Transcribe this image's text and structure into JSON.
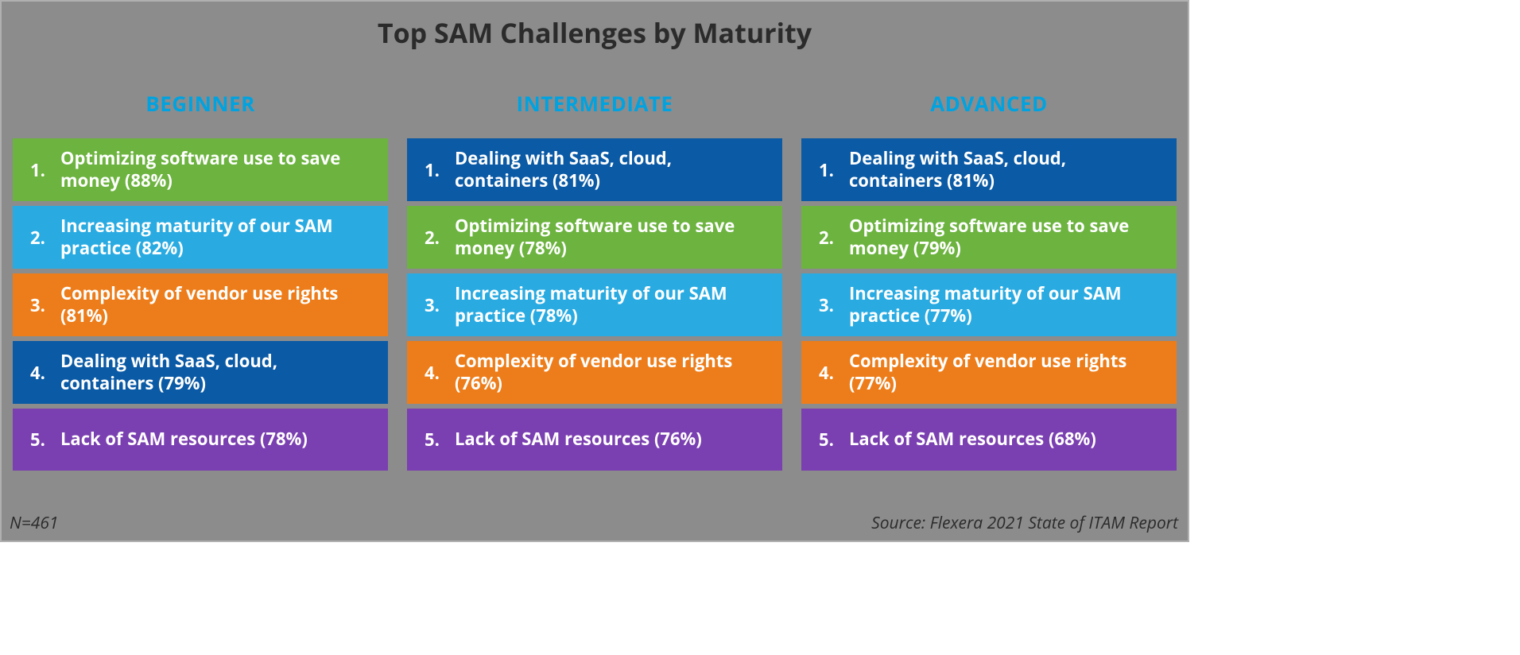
{
  "title": "Top SAM Challenges by Maturity",
  "header_color": "#00a3e0",
  "background_color": "#8c8c8c",
  "border_color": "#b0b0b0",
  "text_color": "#2b2b2b",
  "cell_text_color": "#ffffff",
  "colors": {
    "green": "#6cb33f",
    "lightblue": "#29abe2",
    "orange": "#ed7d1a",
    "darkblue": "#0b5aa5",
    "purple": "#7a3fb0"
  },
  "columns": [
    {
      "header": "BEGINNER",
      "items": [
        {
          "rank": "1.",
          "text": "Optimizing software use to save money (88%)",
          "color": "green"
        },
        {
          "rank": "2.",
          "text": "Increasing maturity of our SAM practice (82%)",
          "color": "lightblue"
        },
        {
          "rank": "3.",
          "text": "Complexity of vendor use rights (81%)",
          "color": "orange"
        },
        {
          "rank": "4.",
          "text": "Dealing with SaaS, cloud, containers (79%)",
          "color": "darkblue"
        },
        {
          "rank": "5.",
          "text": "Lack of SAM resources (78%)",
          "color": "purple"
        }
      ]
    },
    {
      "header": "INTERMEDIATE",
      "items": [
        {
          "rank": "1.",
          "text": "Dealing with SaaS, cloud, containers (81%)",
          "color": "darkblue"
        },
        {
          "rank": "2.",
          "text": "Optimizing software use to save money (78%)",
          "color": "green"
        },
        {
          "rank": "3.",
          "text": "Increasing maturity of our SAM practice (78%)",
          "color": "lightblue"
        },
        {
          "rank": "4.",
          "text": "Complexity of vendor use rights (76%)",
          "color": "orange"
        },
        {
          "rank": "5.",
          "text": "Lack of SAM resources (76%)",
          "color": "purple"
        }
      ]
    },
    {
      "header": "ADVANCED",
      "items": [
        {
          "rank": "1.",
          "text": "Dealing with SaaS, cloud, containers (81%)",
          "color": "darkblue"
        },
        {
          "rank": "2.",
          "text": "Optimizing software use to save money (79%)",
          "color": "green"
        },
        {
          "rank": "3.",
          "text": "Increasing maturity of our SAM practice (77%)",
          "color": "lightblue"
        },
        {
          "rank": "4.",
          "text": "Complexity of vendor use rights (77%)",
          "color": "orange"
        },
        {
          "rank": "5.",
          "text": "Lack of SAM resources (68%)",
          "color": "purple"
        }
      ]
    }
  ],
  "footer_left": "N=461",
  "footer_right": "Source: Flexera 2021 State of ITAM Report"
}
